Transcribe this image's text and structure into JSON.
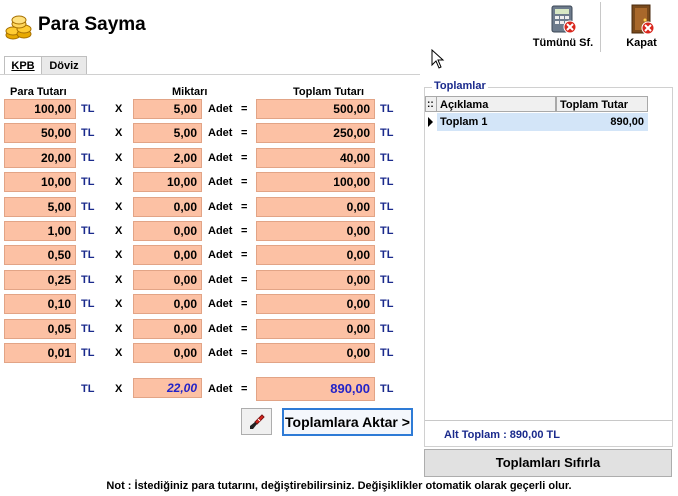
{
  "app": {
    "title": "Para Sayma"
  },
  "toolbar": {
    "clear_all_label": "Tümünü Sf.",
    "close_label": "Kapat"
  },
  "tabs": [
    {
      "label": "KPB",
      "active": true
    },
    {
      "label": "Döviz",
      "active": false
    }
  ],
  "headers": {
    "amount": "Para Tutarı",
    "quantity": "Miktarı",
    "total": "Toplam Tutarı"
  },
  "units": {
    "currency": "TL",
    "times": "X",
    "piece": "Adet",
    "equals": "="
  },
  "rows": [
    {
      "amount": "100,00",
      "qty": "5,00",
      "total": "500,00"
    },
    {
      "amount": "50,00",
      "qty": "5,00",
      "total": "250,00"
    },
    {
      "amount": "20,00",
      "qty": "2,00",
      "total": "40,00"
    },
    {
      "amount": "10,00",
      "qty": "10,00",
      "total": "100,00"
    },
    {
      "amount": "5,00",
      "qty": "0,00",
      "total": "0,00"
    },
    {
      "amount": "1,00",
      "qty": "0,00",
      "total": "0,00"
    },
    {
      "amount": "0,50",
      "qty": "0,00",
      "total": "0,00"
    },
    {
      "amount": "0,25",
      "qty": "0,00",
      "total": "0,00"
    },
    {
      "amount": "0,10",
      "qty": "0,00",
      "total": "0,00"
    },
    {
      "amount": "0,05",
      "qty": "0,00",
      "total": "0,00"
    },
    {
      "amount": "0,01",
      "qty": "0,00",
      "total": "0,00"
    }
  ],
  "summary": {
    "qty_total": "22,00",
    "grand_total": "890,00"
  },
  "buttons": {
    "transfer": "Toplamlara Aktar >",
    "reset": "Toplamları Sıfırla"
  },
  "totals_panel": {
    "title": "Toplamlar",
    "columns": [
      "Açıklama",
      "Toplam Tutar"
    ],
    "rows": [
      {
        "desc": "Toplam 1",
        "amount": "890,00"
      }
    ],
    "subtotal": "Alt Toplam : 890,00 TL"
  },
  "note": "Not : İstediğiniz para tutarını, değiştirebilirsiniz. Değişiklikler otomatik olarak geçerli olur.",
  "colors": {
    "field_bg": "#fcc1a4",
    "accent_blue": "#1a2a8c",
    "focus_border": "#2e7bd6",
    "row_select": "#d3e5f8"
  },
  "icons": {
    "app": "coins-icon",
    "clear_all": "calculator-clear-icon",
    "close": "exit-door-icon",
    "clear_row": "brush-icon"
  }
}
